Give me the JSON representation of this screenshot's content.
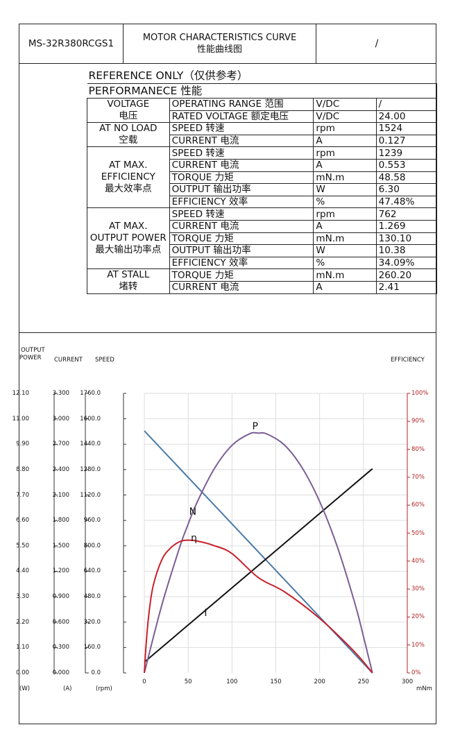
{
  "header": {
    "model": "MS-32R380RCGS1",
    "title_en": "MOTOR CHARACTERISTICS CURVE",
    "title_cn": "性能曲线图",
    "extra": "/"
  },
  "table": {
    "reference": "REFERENCE ONLY（仅供参考）",
    "performance": "PERFORMANECE 性能",
    "groups": [
      {
        "name_lines": [
          "VOLTAGE",
          "电压"
        ],
        "rows": [
          {
            "param": "OPERATING RANGE  范围",
            "unit": "V/DC",
            "value": "/"
          },
          {
            "param": "RATED VOLTAGE  额定电压",
            "unit": "V/DC",
            "value": "24.00"
          }
        ]
      },
      {
        "name_lines": [
          "AT NO LOAD",
          "空载"
        ],
        "rows": [
          {
            "param": "SPEED  转速",
            "unit": "rpm",
            "value": "1524"
          },
          {
            "param": "CURRENT  电流",
            "unit": "A",
            "value": "0.127"
          }
        ]
      },
      {
        "name_lines": [
          "AT MAX.",
          "EFFICIENCY",
          "最大效率点"
        ],
        "rows": [
          {
            "param": "SPEED  转速",
            "unit": "rpm",
            "value": "1239"
          },
          {
            "param": "CURRENT  电流",
            "unit": "A",
            "value": "0.553"
          },
          {
            "param": "TORQUE  力矩",
            "unit": "mN.m",
            "value": "48.58"
          },
          {
            "param": "OUTPUT  输出功率",
            "unit": "W",
            "value": "6.30"
          },
          {
            "param": "EFFICIENCY  效率",
            "unit": "%",
            "value": "47.48%"
          }
        ]
      },
      {
        "name_lines": [
          "AT MAX.",
          "OUTPUT POWER",
          "最大输出功率点"
        ],
        "rows": [
          {
            "param": "SPEED  转速",
            "unit": "rpm",
            "value": "762"
          },
          {
            "param": "CURRENT  电流",
            "unit": "A",
            "value": "1.269"
          },
          {
            "param": "TORQUE  力矩",
            "unit": "mN.m",
            "value": "130.10"
          },
          {
            "param": "OUTPUT  输出功率",
            "unit": "W",
            "value": "10.38"
          },
          {
            "param": "EFFICIENCY  效率",
            "unit": "%",
            "value": "34.09%"
          }
        ]
      },
      {
        "name_lines": [
          "AT STALL",
          "堵转"
        ],
        "rows": [
          {
            "param": "TORQUE  力矩",
            "unit": "mN.m",
            "value": "260.20"
          },
          {
            "param": "CURRENT  电流",
            "unit": "A",
            "value": "2.41"
          }
        ]
      }
    ]
  },
  "chart_data": {
    "type": "line",
    "axis_headers": {
      "power": [
        "OUTPUT",
        "POWER"
      ],
      "current": "CURRENT",
      "speed": "SPEED",
      "efficiency": "EFFICIENCY"
    },
    "axis_units": {
      "power": "(W)",
      "current": "(A)",
      "speed": "(rpm)",
      "torque": "mNm"
    },
    "power_ticks": [
      "0.00",
      "1.10",
      "2.20",
      "3.30",
      "4.40",
      "5.50",
      "6.60",
      "7.70",
      "8.80",
      "9.90",
      "11.00",
      "12.10"
    ],
    "current_ticks": [
      "0.000",
      "0.300",
      "0.600",
      "0.900",
      "1.200",
      "1.500",
      "1.800",
      "2.100",
      "2.400",
      "2.700",
      "3.000",
      "3.300"
    ],
    "speed_ticks": [
      "0.0",
      "160.0",
      "320.0",
      "480.0",
      "640.0",
      "800.0",
      "960.0",
      "1120.0",
      "1280.0",
      "1440.0",
      "1600.0",
      "1760.0"
    ],
    "efficiency_ticks": [
      "0%",
      "10%",
      "20%",
      "30%",
      "40%",
      "50%",
      "60%",
      "70%",
      "80%",
      "90%",
      "100%"
    ],
    "torque_ticks": [
      "0",
      "50",
      "100",
      "150",
      "200",
      "250",
      "300"
    ],
    "xlim": [
      0,
      300
    ],
    "colors": {
      "speed": "#4a7aa8",
      "current": "#111111",
      "power": "#7b5c94",
      "efficiency": "#c8202a",
      "eff_axis": "#b02020",
      "grid": "#dddddd"
    },
    "series": [
      {
        "name": "N",
        "axis": "speed",
        "x": [
          0,
          260.2
        ],
        "y": [
          1524,
          0
        ]
      },
      {
        "name": "I",
        "axis": "current",
        "x": [
          0,
          260.2
        ],
        "y": [
          0.127,
          2.41
        ]
      },
      {
        "name": "P",
        "axis": "power",
        "x": [
          0,
          20,
          40,
          48.58,
          60,
          80,
          100,
          120,
          130.1,
          140,
          160,
          180,
          200,
          220,
          240,
          250,
          260.2
        ],
        "y": [
          0,
          2.94,
          5.4,
          6.3,
          7.37,
          8.85,
          9.85,
          10.35,
          10.38,
          10.34,
          9.86,
          8.88,
          7.42,
          5.48,
          3.04,
          1.58,
          0
        ]
      },
      {
        "name": "η",
        "axis": "efficiency",
        "x": [
          0,
          2,
          5,
          10,
          20,
          30,
          40,
          48.58,
          60,
          80,
          100,
          130.1,
          160,
          200,
          240,
          260.2
        ],
        "y": [
          0,
          10,
          20.5,
          31,
          40.5,
          44.7,
          46.9,
          47.48,
          47.2,
          45.5,
          42.7,
          34.09,
          29,
          19.5,
          7.5,
          0
        ]
      }
    ]
  }
}
